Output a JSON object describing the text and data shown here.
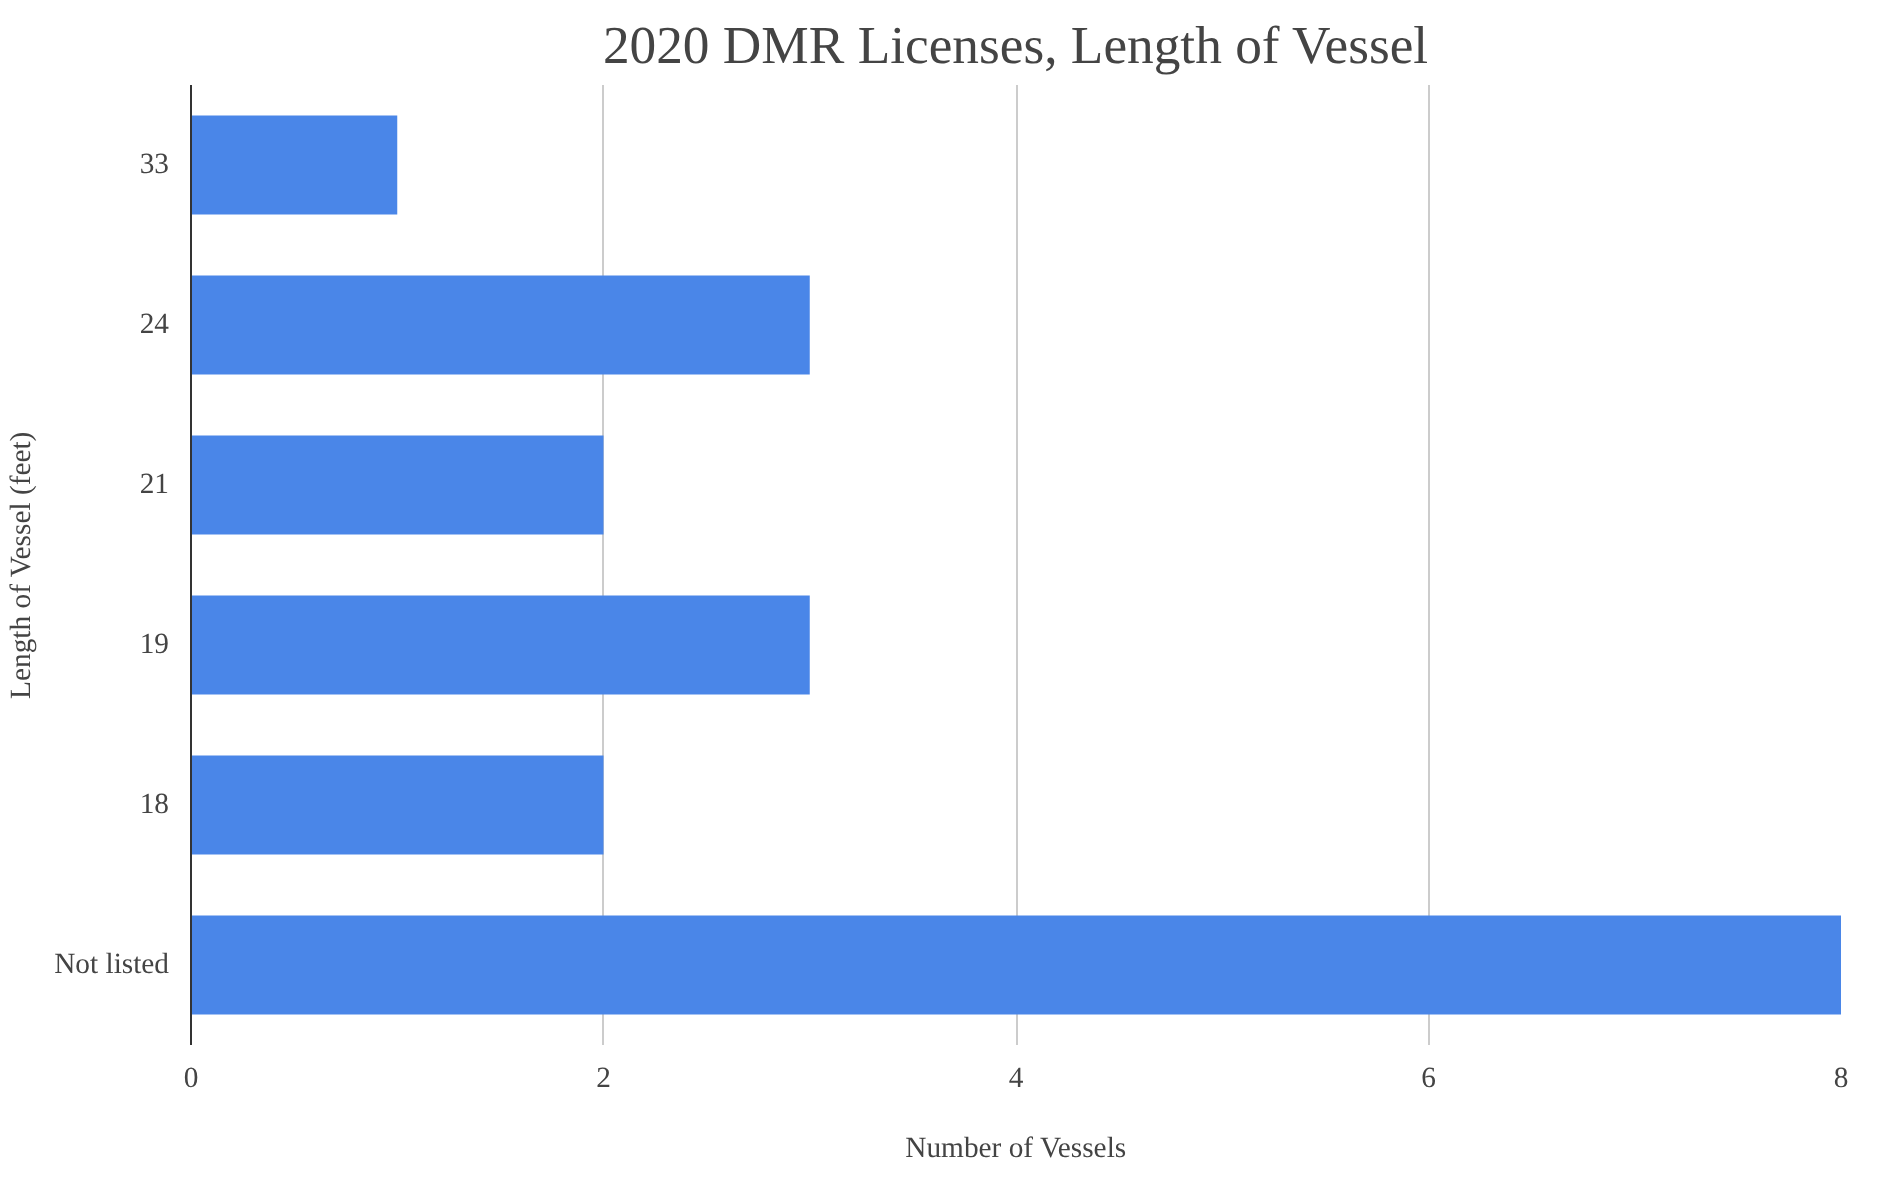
{
  "chart_data": {
    "type": "bar",
    "orientation": "horizontal",
    "title": "2020 DMR Licenses, Length of Vessel",
    "xlabel": "Number of Vessels",
    "ylabel": "Length of Vessel (feet)",
    "categories": [
      "33",
      "24",
      "21",
      "19",
      "18",
      "Not listed"
    ],
    "values": [
      1,
      3,
      2,
      3,
      2,
      8
    ],
    "color": "#4a86e8",
    "xlim": [
      0,
      8
    ],
    "xticks": [
      0,
      2,
      4,
      6,
      8
    ],
    "grid": "x"
  }
}
